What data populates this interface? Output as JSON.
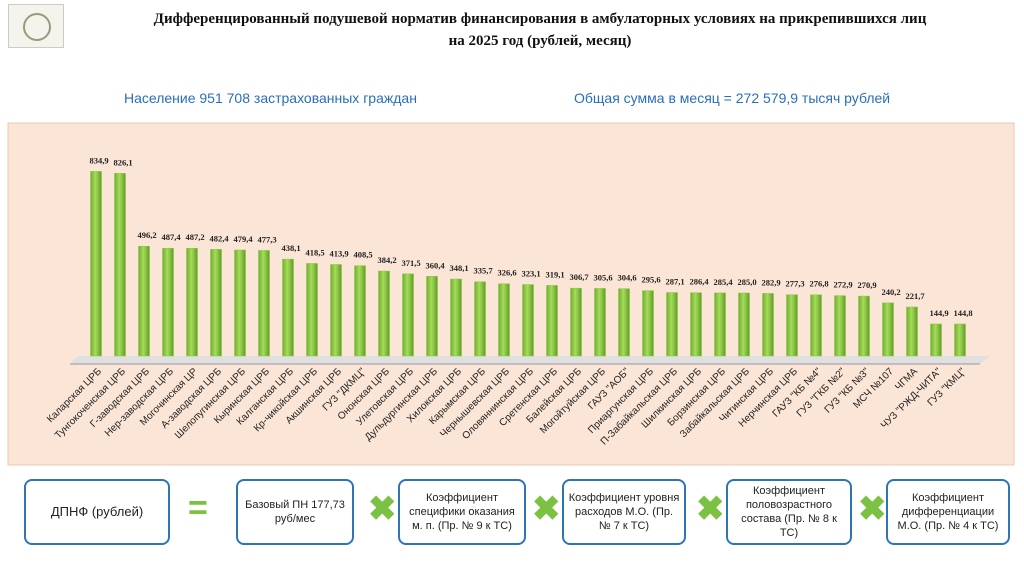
{
  "chart_data": {
    "type": "bar",
    "title": "Дифференцированный подушевой норматив финансирования в амбулаторных условиях на прикрепившихся лиц",
    "subtitle": "на 2025 год (рублей, месяц)",
    "annotations": [
      "Население 951 708 застрахованных граждан",
      "Общая сумма в месяц = 272 579,9 тысяч рублей"
    ],
    "categories": [
      "Каларская ЦРБ",
      "Тунгокоченская ЦРБ",
      "Г-заводская ЦРБ",
      "Нер-заводская ЦРБ",
      "Могочинская ЦР",
      "А-заводская ЦРБ",
      "Шелопугинская ЦРБ",
      "Кыринская ЦРБ",
      "Калганская ЦРБ",
      "Кр-чикойская ЦРБ",
      "Акшинская ЦРБ",
      "ГУЗ \"ДКМЦ\"",
      "Ононская ЦРБ",
      "Улетовская ЦРБ",
      "Дульдургинская ЦРБ",
      "Хилокская ЦРБ",
      "Карымская ЦРБ",
      "Чернышевская ЦРБ",
      "Оловяннинская ЦРБ",
      "Сретенская ЦРБ",
      "Балейская ЦРБ",
      "Могойтуйская ЦРБ",
      "ГАУЗ \"АОБ\"",
      "Приаргунская ЦРБ",
      "П-Забайкальская ЦРБ",
      "Шилкинская ЦРБ",
      "Борзинская ЦРБ",
      "Забайкальская ЦРБ",
      "Читинская ЦРБ",
      "Нерчинская ЦРБ",
      "ГАУЗ \"КБ №4\"",
      "ГУЗ \"ГКБ №2\"",
      "ГУЗ \"КБ №3\"",
      "МСЧ №107",
      "ЧГМА",
      "ЧУЗ \"РЖД-ЧИТА\"",
      "ГУЗ \"КМЦ\""
    ],
    "values": [
      834.9,
      826.1,
      496.2,
      487.4,
      487.2,
      482.4,
      479.4,
      477.3,
      438.1,
      418.5,
      413.9,
      408.5,
      384.2,
      371.5,
      360.4,
      348.1,
      335.7,
      326.6,
      323.1,
      319.1,
      306.7,
      305.6,
      304.6,
      295.6,
      287.1,
      286.4,
      285.4,
      285.0,
      282.9,
      277.3,
      276.8,
      272.9,
      270.9,
      240.2,
      221.7,
      144.9,
      144.8
    ],
    "value_labels": [
      "834,9",
      "826,1",
      "496,2",
      "487,4",
      "487,2",
      "482,4",
      "479,4",
      "477,3",
      "438,1",
      "418,5",
      "413,9",
      "408,5",
      "384,2",
      "371,5",
      "360,4",
      "348,1",
      "335,7",
      "326,6",
      "323,1",
      "319,1",
      "306,7",
      "305,6",
      "304,6",
      "295,6",
      "287,1",
      "286,4",
      "285,4",
      "285,0",
      "282,9",
      "277,3",
      "276,8",
      "272,9",
      "270,9",
      "240,2",
      "221,7",
      "144,9",
      "144,8"
    ],
    "color": "#8cc63f",
    "ylim": [
      0,
      900
    ]
  },
  "formula": {
    "result": "ДПНФ (рублей)",
    "equals": "=",
    "terms": [
      "Базовый ПН 177,73 руб/мес",
      "Коэффициент специфики оказания м. п. (Пр. № 9 к ТС)",
      "Коэффициент уровня расходов М.О. (Пр. № 7 к ТС)",
      "Коэффициент половозрастного состава (Пр. № 8 к ТС)",
      "Коэффициент дифференциации М.О. (Пр. № 4 к ТС)"
    ]
  }
}
